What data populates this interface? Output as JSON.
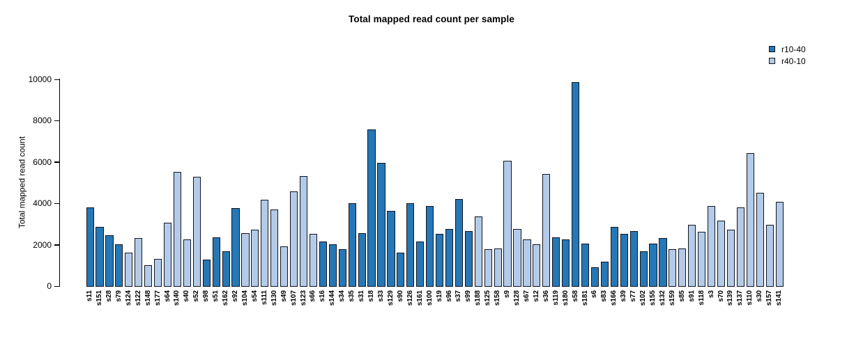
{
  "chart_data": {
    "type": "bar",
    "title": "Total mapped read count per sample",
    "xlabel": "",
    "ylabel": "Total mapped read count",
    "ylim": [
      0,
      10000
    ],
    "yticks": [
      0,
      2000,
      4000,
      6000,
      8000,
      10000
    ],
    "grid": false,
    "legend_position": "top-right",
    "series": [
      {
        "name": "r10-40",
        "color": "#2677b5"
      },
      {
        "name": "r40-10",
        "color": "#b3cbe8"
      }
    ],
    "categories": [
      "s11",
      "s151",
      "s28",
      "s79",
      "s124",
      "s122",
      "s148",
      "s177",
      "s64",
      "s140",
      "s40",
      "s52",
      "s98",
      "s51",
      "s162",
      "s92",
      "s104",
      "s54",
      "s111",
      "s130",
      "s49",
      "s107",
      "s123",
      "s66",
      "s16",
      "s144",
      "s34",
      "s35",
      "s31",
      "s18",
      "s33",
      "s129",
      "s90",
      "s126",
      "s161",
      "s100",
      "s19",
      "s96",
      "s37",
      "s99",
      "s188",
      "s125",
      "s158",
      "s9",
      "s128",
      "s67",
      "s12",
      "s36",
      "s119",
      "s180",
      "s58",
      "s181",
      "s6",
      "s83",
      "s166",
      "s39",
      "s77",
      "s102",
      "s155",
      "s132",
      "s159",
      "s85",
      "s91",
      "s118",
      "s3",
      "s70",
      "s139",
      "s137",
      "s110",
      "s30",
      "s157",
      "s141"
    ],
    "values": [
      3850,
      2900,
      2500,
      2050,
      1650,
      2350,
      1050,
      1350,
      3100,
      5550,
      2300,
      5300,
      1300,
      2400,
      1700,
      3800,
      2600,
      2750,
      4200,
      3750,
      1950,
      4600,
      5350,
      2550,
      2200,
      2050,
      1800,
      4050,
      2600,
      7600,
      6000,
      3650,
      1650,
      4050,
      2200,
      3900,
      2550,
      2800,
      4250,
      2700,
      3400,
      1800,
      1850,
      6100,
      2800,
      2300,
      2050,
      5450,
      2400,
      2300,
      9900,
      2100,
      950,
      1200,
      2900,
      2550,
      2700,
      1700,
      2100,
      2350,
      1800,
      1850,
      3000,
      2650,
      3900,
      3200,
      2750,
      3850,
      6450,
      4550,
      3000,
      4100
    ],
    "group_index": [
      0,
      0,
      0,
      0,
      1,
      1,
      1,
      1,
      1,
      1,
      1,
      1,
      0,
      0,
      0,
      0,
      1,
      1,
      1,
      1,
      1,
      1,
      1,
      1,
      0,
      0,
      0,
      0,
      0,
      0,
      0,
      0,
      0,
      0,
      0,
      0,
      0,
      0,
      0,
      0,
      1,
      1,
      1,
      1,
      1,
      1,
      1,
      1,
      0,
      0,
      0,
      0,
      0,
      0,
      0,
      0,
      0,
      0,
      0,
      0,
      1,
      1,
      1,
      1,
      1,
      1,
      1,
      1,
      1,
      1,
      1,
      1
    ]
  }
}
